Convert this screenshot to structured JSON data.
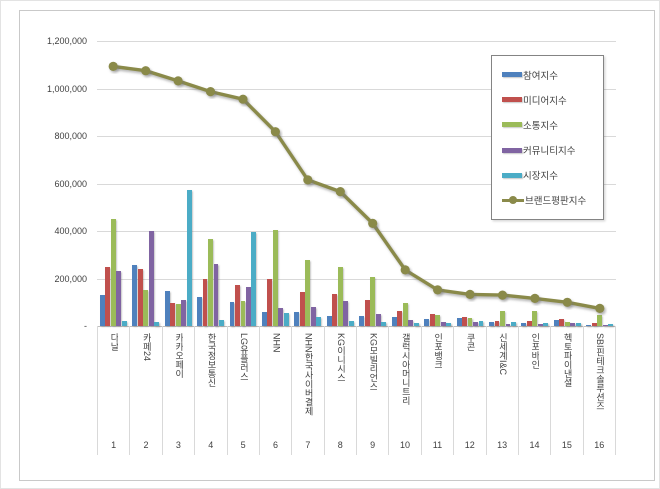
{
  "chart_data": {
    "type": "bar",
    "title": "",
    "legend_position": "top-right-inside",
    "grid": true,
    "y_axis": {
      "min": 0,
      "max": 1200000,
      "step": 200000,
      "tick_labels": [
        "1,200,000",
        "1,000,000",
        "800,000",
        "600,000",
        "400,000",
        "200,000",
        "-"
      ]
    },
    "categories": [
      "다날",
      "카페24",
      "카카오페이",
      "한국정보통신",
      "LG유플러스",
      "NHN",
      "NHN한국사이버결제",
      "KG이니시스",
      "KG모빌리언스",
      "갤럭시아머니트리",
      "인포뱅크",
      "쿠콘",
      "신세계I&C",
      "인포바인",
      "헥토파이낸셜",
      "SBI핀테크솔루션즈"
    ],
    "category_numbers": [
      "1",
      "2",
      "3",
      "4",
      "5",
      "6",
      "7",
      "8",
      "9",
      "10",
      "11",
      "12",
      "13",
      "14",
      "15",
      "16"
    ],
    "series": [
      {
        "name": "참여지수",
        "type": "bar",
        "color": "#4F81BD",
        "values": [
          130000,
          257000,
          147000,
          123000,
          101000,
          61000,
          61000,
          43000,
          44000,
          40000,
          28000,
          32000,
          15000,
          13000,
          27000,
          4000
        ]
      },
      {
        "name": "미디어지수",
        "type": "bar",
        "color": "#C0504D",
        "values": [
          250000,
          240000,
          99000,
          200000,
          173000,
          197000,
          144000,
          136000,
          110000,
          62000,
          50000,
          38000,
          23000,
          20000,
          30000,
          11000
        ]
      },
      {
        "name": "소통지수",
        "type": "bar",
        "color": "#9BBB59",
        "values": [
          450000,
          151000,
          94000,
          366000,
          104000,
          405000,
          280000,
          250000,
          207000,
          95000,
          46000,
          32000,
          65000,
          64000,
          17000,
          48000
        ]
      },
      {
        "name": "커뮤니티지수",
        "type": "bar",
        "color": "#8064A2",
        "values": [
          230000,
          400000,
          111000,
          261000,
          166000,
          75000,
          79000,
          104000,
          50000,
          25000,
          18000,
          15000,
          10000,
          8000,
          11000,
          3000
        ]
      },
      {
        "name": "시장지수",
        "type": "bar",
        "color": "#4BACC6",
        "values": [
          23000,
          16000,
          573000,
          26000,
          394000,
          54000,
          37000,
          21000,
          16000,
          13000,
          11000,
          21000,
          18000,
          11000,
          13000,
          10000
        ]
      },
      {
        "name": "브랜드평판지수",
        "type": "line",
        "color": "#8A8A4A",
        "values": [
          1093000,
          1075000,
          1032000,
          987000,
          955000,
          818000,
          615000,
          566000,
          432000,
          236000,
          152000,
          133000,
          130000,
          116000,
          100000,
          74000
        ]
      }
    ],
    "colors": {
      "gridline": "#d9d9d9",
      "axis_line": "#bfbfbf",
      "text": "#404040",
      "frame_border": "#c9c9c9",
      "legend_border": "#848484"
    }
  }
}
